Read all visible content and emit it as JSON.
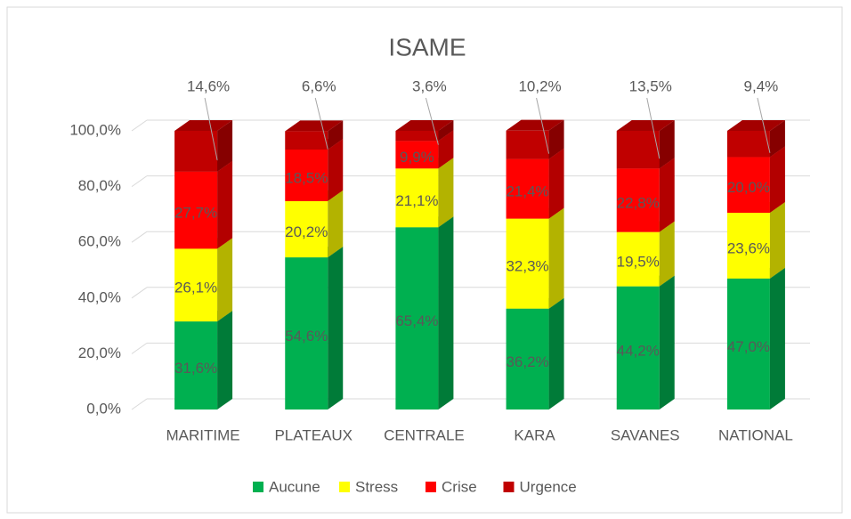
{
  "chart_data": {
    "type": "bar3d_stacked",
    "title": "ISAME",
    "categories": [
      "MARITIME",
      "PLATEAUX",
      "CENTRALE",
      "KARA",
      "SAVANES",
      "NATIONAL"
    ],
    "series": [
      {
        "name": "Aucune",
        "color": "#00b050",
        "values": [
          31.6,
          54.6,
          65.4,
          36.2,
          44.2,
          47.0
        ],
        "value_labels": [
          "31,6%",
          "54,6%",
          "65,4%",
          "36,2%",
          "44,2%",
          "47,0%"
        ]
      },
      {
        "name": "Stress",
        "color": "#ffff00",
        "values": [
          26.1,
          20.2,
          21.1,
          32.3,
          19.5,
          23.6
        ],
        "value_labels": [
          "26,1%",
          "20,2%",
          "21,1%",
          "32,3%",
          "19,5%",
          "23,6%"
        ]
      },
      {
        "name": "Crise",
        "color": "#ff0000",
        "values": [
          27.7,
          18.5,
          9.9,
          21.4,
          22.8,
          20.0
        ],
        "value_labels": [
          "27,7%",
          "18,5%",
          "9,9%",
          "21,4%",
          "22,8%",
          "20,0%"
        ]
      },
      {
        "name": "Urgence",
        "color": "#c00000",
        "values": [
          14.6,
          6.6,
          3.6,
          10.2,
          13.5,
          9.4
        ],
        "value_labels": [
          "14,6%",
          "6,6%",
          "3,6%",
          "10,2%",
          "13,5%",
          "9,4%"
        ]
      }
    ],
    "ylim": [
      0,
      100
    ],
    "yticks": [
      {
        "value": 0,
        "label": "0,0%"
      },
      {
        "value": 20,
        "label": "20,0%"
      },
      {
        "value": 40,
        "label": "40,0%"
      },
      {
        "value": 60,
        "label": "60,0%"
      },
      {
        "value": 80,
        "label": "80,0%"
      },
      {
        "value": 100,
        "label": "100,0%"
      }
    ],
    "grid": true,
    "legend": "bottom"
  }
}
